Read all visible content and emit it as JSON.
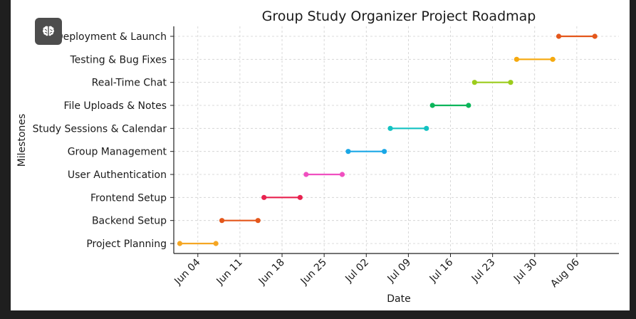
{
  "app": {
    "badge_icon": "brain-icon"
  },
  "chart_data": {
    "type": "gantt",
    "title": "Group Study Organizer Project Roadmap",
    "xlabel": "Date",
    "ylabel": "Milestones",
    "x_ticks": [
      {
        "date": "2024-06-04",
        "label": "Jun 04"
      },
      {
        "date": "2024-06-11",
        "label": "Jun 11"
      },
      {
        "date": "2024-06-18",
        "label": "Jun 18"
      },
      {
        "date": "2024-06-25",
        "label": "Jun 25"
      },
      {
        "date": "2024-07-02",
        "label": "Jul 02"
      },
      {
        "date": "2024-07-09",
        "label": "Jul 09"
      },
      {
        "date": "2024-07-16",
        "label": "Jul 16"
      },
      {
        "date": "2024-07-23",
        "label": "Jul 23"
      },
      {
        "date": "2024-07-30",
        "label": "Jul 30"
      },
      {
        "date": "2024-08-06",
        "label": "Aug 06"
      }
    ],
    "xlim": [
      "2024-05-31",
      "2024-08-13"
    ],
    "grid": true,
    "tasks": [
      {
        "name": "Project Planning",
        "start": "2024-06-01",
        "end": "2024-06-07",
        "color": "#f5a623"
      },
      {
        "name": "Backend Setup",
        "start": "2024-06-08",
        "end": "2024-06-14",
        "color": "#e4571b"
      },
      {
        "name": "Frontend Setup",
        "start": "2024-06-15",
        "end": "2024-06-21",
        "color": "#e8224f"
      },
      {
        "name": "User Authentication",
        "start": "2024-06-22",
        "end": "2024-06-28",
        "color": "#f04fc0"
      },
      {
        "name": "Group Management",
        "start": "2024-06-29",
        "end": "2024-07-05",
        "color": "#1aa7e6"
      },
      {
        "name": "Study Sessions & Calendar",
        "start": "2024-07-06",
        "end": "2024-07-12",
        "color": "#14c2c2"
      },
      {
        "name": "File Uploads & Notes",
        "start": "2024-07-13",
        "end": "2024-07-19",
        "color": "#0bb55a"
      },
      {
        "name": "Real-Time Chat",
        "start": "2024-07-20",
        "end": "2024-07-26",
        "color": "#9ccc1c"
      },
      {
        "name": "Testing & Bug Fixes",
        "start": "2024-07-27",
        "end": "2024-08-02",
        "color": "#f5a90f"
      },
      {
        "name": "Deployment & Launch",
        "start": "2024-08-03",
        "end": "2024-08-09",
        "color": "#e4571b"
      }
    ]
  }
}
